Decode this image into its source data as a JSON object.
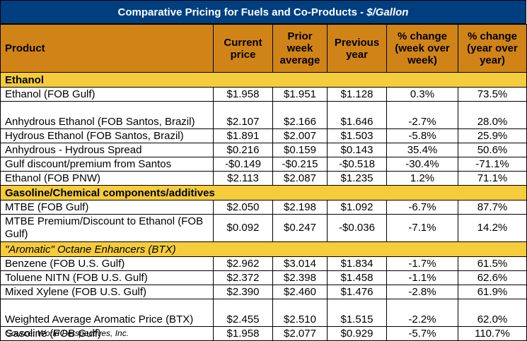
{
  "title": {
    "main": "Comparative Pricing for Fuels and Co-Products - ",
    "unit": "$/Gallon"
  },
  "columns": [
    "Product",
    "Current price",
    "Prior week average",
    "Previous year",
    "% change (week over week)",
    "% change (year over year)"
  ],
  "sections": [
    {
      "label": "Ethanol",
      "style": "bold",
      "rows": [
        {
          "product": "Ethanol (FOB Gulf)",
          "current": "$1.958",
          "prior_week": "$1.951",
          "previous_year": "$1.128",
          "pct_week": "0.3%",
          "pct_year": "73.5%"
        },
        {
          "product": "Anhydrous Ethanol (FOB Santos, Brazil)",
          "current": "$2.107",
          "prior_week": "$2.166",
          "previous_year": "$1.646",
          "pct_week": "-2.7%",
          "pct_year": "28.0%"
        },
        {
          "product": "Hydrous Ethanol (FOB Santos, Brazil)",
          "current": "$1.891",
          "prior_week": "$2.007",
          "previous_year": "$1.503",
          "pct_week": "-5.8%",
          "pct_year": "25.9%"
        },
        {
          "product": "Anhydrous - Hydrous Spread",
          "current": "$0.216",
          "prior_week": "$0.159",
          "previous_year": "$0.143",
          "pct_week": "35.4%",
          "pct_year": "50.6%"
        },
        {
          "product": "Gulf discount/premium from Santos",
          "current": "-$0.149",
          "prior_week": "-$0.215",
          "previous_year": "-$0.518",
          "pct_week": "-30.4%",
          "pct_year": "-71.1%"
        },
        {
          "product": "Ethanol (FOB PNW)",
          "current": "$2.113",
          "prior_week": "$2.087",
          "previous_year": "$1.235",
          "pct_week": "1.2%",
          "pct_year": "71.1%"
        }
      ]
    },
    {
      "label": "Gasoline/Chemical components/additives",
      "style": "bold",
      "rows": [
        {
          "product": "MTBE (FOB Gulf)",
          "current": "$2.050",
          "prior_week": "$2.198",
          "previous_year": "$1.092",
          "pct_week": "-6.7%",
          "pct_year": "87.7%"
        },
        {
          "product": "MTBE Premium/Discount to Ethanol (FOB Gulf)",
          "current": "$0.092",
          "prior_week": "$0.247",
          "previous_year": "-$0.036",
          "pct_week": "-7.1%",
          "pct_year": "14.2%"
        }
      ]
    },
    {
      "label": "\"Aromatic\" Octane Enhancers (BTX)",
      "style": "italic",
      "rows": [
        {
          "product": "Benzene (FOB U.S. Gulf)",
          "current": "$2.962",
          "prior_week": "$3.014",
          "previous_year": "$1.834",
          "pct_week": "-1.7%",
          "pct_year": "61.5%"
        },
        {
          "product": "Toluene NITN (FOB U.S. Gulf)",
          "current": "$2.372",
          "prior_week": "$2.398",
          "previous_year": "$1.458",
          "pct_week": "-1.1%",
          "pct_year": "62.6%"
        },
        {
          "product": "Mixed Xylene (FOB U.S. Gulf)",
          "current": "$2.390",
          "prior_week": "$2.460",
          "previous_year": "$1.476",
          "pct_week": "-2.8%",
          "pct_year": "61.9%"
        },
        {
          "product": "Weighted Average Aromatic Price (BTX)",
          "current": "$2.455",
          "prior_week": "$2.510",
          "previous_year": "$1.515",
          "pct_week": "-2.2%",
          "pct_year": "62.0%"
        },
        {
          "product": "Gasoline (FOB Gulf)",
          "current": "$1.958",
          "prior_week": "$2.077",
          "previous_year": "$0.929",
          "pct_week": "-5.7%",
          "pct_year": "110.7%"
        }
      ]
    }
  ],
  "source": "Source: World Perspectives, Inc.",
  "colors": {
    "title_bg": "#003f7f",
    "header_bg": "#d08418",
    "section_bg": "#f4cc3c"
  }
}
